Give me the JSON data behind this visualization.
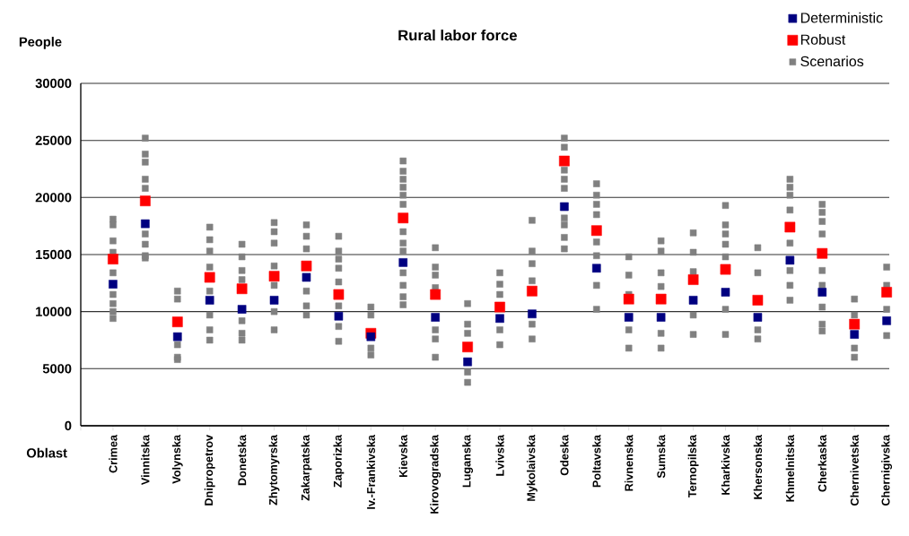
{
  "chart_data": {
    "type": "scatter",
    "title": "Rural labor force",
    "ylabel": "People",
    "xlabel": "Oblast",
    "categories": [
      "Crimea",
      "Vinnitska",
      "Volynska",
      "Dnipropetrov",
      "Donetska",
      "Zhytomyrska",
      "Zakarpatska",
      "Zaporizka",
      "Iv.-Frankivska",
      "Kievska",
      "Kirovogradska",
      "Luganska",
      "Lvivska",
      "Mykolaivska",
      "Odeska",
      "Poltavska",
      "Rivnenska",
      "Sumska",
      "Ternopilska",
      "Kharkivska",
      "Khersonska",
      "Khmelnitska",
      "Cherkaska",
      "Chernivetska",
      "Chernigivska"
    ],
    "ylim": [
      0,
      30000
    ],
    "yticks": [
      0,
      5000,
      10000,
      15000,
      20000,
      25000,
      30000
    ],
    "grid": "y",
    "legend": "top right",
    "marker": "square",
    "series": [
      {
        "name": "Deterministic",
        "color": "#000080",
        "values": [
          12400,
          17700,
          7800,
          11000,
          10200,
          11000,
          13000,
          9600,
          7800,
          14300,
          9500,
          5600,
          9400,
          9800,
          19200,
          13800,
          9500,
          9500,
          11000,
          11700,
          9500,
          14500,
          11700,
          8000,
          9200
        ]
      },
      {
        "name": "Robust",
        "color": "#ff0000",
        "values": [
          14600,
          19700,
          9100,
          13000,
          12000,
          13100,
          14000,
          11500,
          8100,
          18200,
          11500,
          6900,
          10400,
          11800,
          23200,
          17100,
          11100,
          11100,
          12800,
          13700,
          11000,
          17400,
          15100,
          8900,
          11700
        ]
      },
      {
        "name": "Scenarios",
        "color": "#808080",
        "x": [
          "Crimea",
          "Crimea",
          "Crimea",
          "Crimea",
          "Crimea",
          "Crimea",
          "Crimea",
          "Crimea",
          "Crimea",
          "Vinnitska",
          "Vinnitska",
          "Vinnitska",
          "Vinnitska",
          "Vinnitska",
          "Vinnitska",
          "Vinnitska",
          "Vinnitska",
          "Vinnitska",
          "Volynska",
          "Volynska",
          "Volynska",
          "Volynska",
          "Volynska",
          "Dnipropetrov",
          "Dnipropetrov",
          "Dnipropetrov",
          "Dnipropetrov",
          "Dnipropetrov",
          "Dnipropetrov",
          "Dnipropetrov",
          "Dnipropetrov",
          "Donetska",
          "Donetska",
          "Donetska",
          "Donetska",
          "Donetska",
          "Donetska",
          "Donetska",
          "Zhytomyrska",
          "Zhytomyrska",
          "Zhytomyrska",
          "Zhytomyrska",
          "Zhytomyrska",
          "Zhytomyrska",
          "Zhytomyrska",
          "Zakarpatska",
          "Zakarpatska",
          "Zakarpatska",
          "Zakarpatska",
          "Zakarpatska",
          "Zakarpatska",
          "Zaporizka",
          "Zaporizka",
          "Zaporizka",
          "Zaporizka",
          "Zaporizka",
          "Zaporizka",
          "Zaporizka",
          "Zaporizka",
          "Iv.-Frankivska",
          "Iv.-Frankivska",
          "Iv.-Frankivska",
          "Iv.-Frankivska",
          "Kievska",
          "Kievska",
          "Kievska",
          "Kievska",
          "Kievska",
          "Kievska",
          "Kievska",
          "Kievska",
          "Kievska",
          "Kievska",
          "Kievska",
          "Kievska",
          "Kievska",
          "Kirovogradska",
          "Kirovogradska",
          "Kirovogradska",
          "Kirovogradska",
          "Kirovogradska",
          "Kirovogradska",
          "Kirovogradska",
          "Luganska",
          "Luganska",
          "Luganska",
          "Luganska",
          "Luganska",
          "Lvivska",
          "Lvivska",
          "Lvivska",
          "Lvivska",
          "Lvivska",
          "Mykolaivska",
          "Mykolaivska",
          "Mykolaivska",
          "Mykolaivska",
          "Mykolaivska",
          "Mykolaivska",
          "Odeska",
          "Odeska",
          "Odeska",
          "Odeska",
          "Odeska",
          "Odeska",
          "Odeska",
          "Odeska",
          "Odeska",
          "Poltavska",
          "Poltavska",
          "Poltavska",
          "Poltavska",
          "Poltavska",
          "Poltavska",
          "Poltavska",
          "Poltavska",
          "Rivnenska",
          "Rivnenska",
          "Rivnenska",
          "Rivnenska",
          "Rivnenska",
          "Sumska",
          "Sumska",
          "Sumska",
          "Sumska",
          "Sumska",
          "Sumska",
          "Ternopilska",
          "Ternopilska",
          "Ternopilska",
          "Ternopilska",
          "Ternopilska",
          "Kharkivska",
          "Kharkivska",
          "Kharkivska",
          "Kharkivska",
          "Kharkivska",
          "Kharkivska",
          "Kharkivska",
          "Khersonska",
          "Khersonska",
          "Khersonska",
          "Khersonska",
          "Khmelnitska",
          "Khmelnitska",
          "Khmelnitska",
          "Khmelnitska",
          "Khmelnitska",
          "Khmelnitska",
          "Khmelnitska",
          "Khmelnitska",
          "Cherkaska",
          "Cherkaska",
          "Cherkaska",
          "Cherkaska",
          "Cherkaska",
          "Cherkaska",
          "Cherkaska",
          "Cherkaska",
          "Cherkaska",
          "Chernivetska",
          "Chernivetska",
          "Chernivetska",
          "Chernivetska",
          "Chernigivska",
          "Chernigivska",
          "Chernigivska",
          "Chernigivska"
        ],
        "values": [
          18100,
          17600,
          16200,
          15200,
          13400,
          11500,
          10700,
          10000,
          9400,
          25200,
          23800,
          23100,
          21600,
          20800,
          16800,
          15900,
          14900,
          14700,
          11800,
          11100,
          7100,
          6000,
          5800,
          17400,
          16300,
          15300,
          13900,
          11800,
          9700,
          8400,
          7500,
          15900,
          14800,
          13600,
          12800,
          9200,
          8100,
          7500,
          17800,
          17000,
          16000,
          14000,
          12300,
          10000,
          8400,
          17600,
          16600,
          15500,
          11800,
          10500,
          9700,
          16600,
          15300,
          14600,
          13800,
          12600,
          10500,
          8700,
          7400,
          10400,
          9700,
          6800,
          6200,
          23200,
          22300,
          21600,
          20900,
          20200,
          19400,
          17000,
          16000,
          15300,
          13400,
          12300,
          11300,
          10600,
          15600,
          13900,
          13200,
          12100,
          8400,
          7600,
          6000,
          10700,
          8900,
          8100,
          4700,
          3800,
          13400,
          12400,
          11500,
          8400,
          7100,
          18000,
          15300,
          14200,
          12700,
          8900,
          7600,
          25200,
          24400,
          22400,
          21600,
          20800,
          18200,
          17600,
          16500,
          15500,
          21200,
          20200,
          19400,
          18500,
          16100,
          14900,
          12300,
          10200,
          14800,
          13200,
          11500,
          8400,
          6800,
          16200,
          15300,
          13400,
          12200,
          8100,
          6800,
          16900,
          15200,
          13500,
          9700,
          8000,
          19300,
          17600,
          16800,
          15900,
          14800,
          10200,
          8000,
          15600,
          13400,
          8400,
          7600,
          21600,
          20900,
          20200,
          18900,
          16000,
          13600,
          12300,
          11000,
          19400,
          18700,
          17900,
          16800,
          13600,
          12300,
          10400,
          8900,
          8300,
          11100,
          9700,
          6800,
          6000,
          13900,
          12300,
          10200,
          7900
        ]
      }
    ]
  }
}
